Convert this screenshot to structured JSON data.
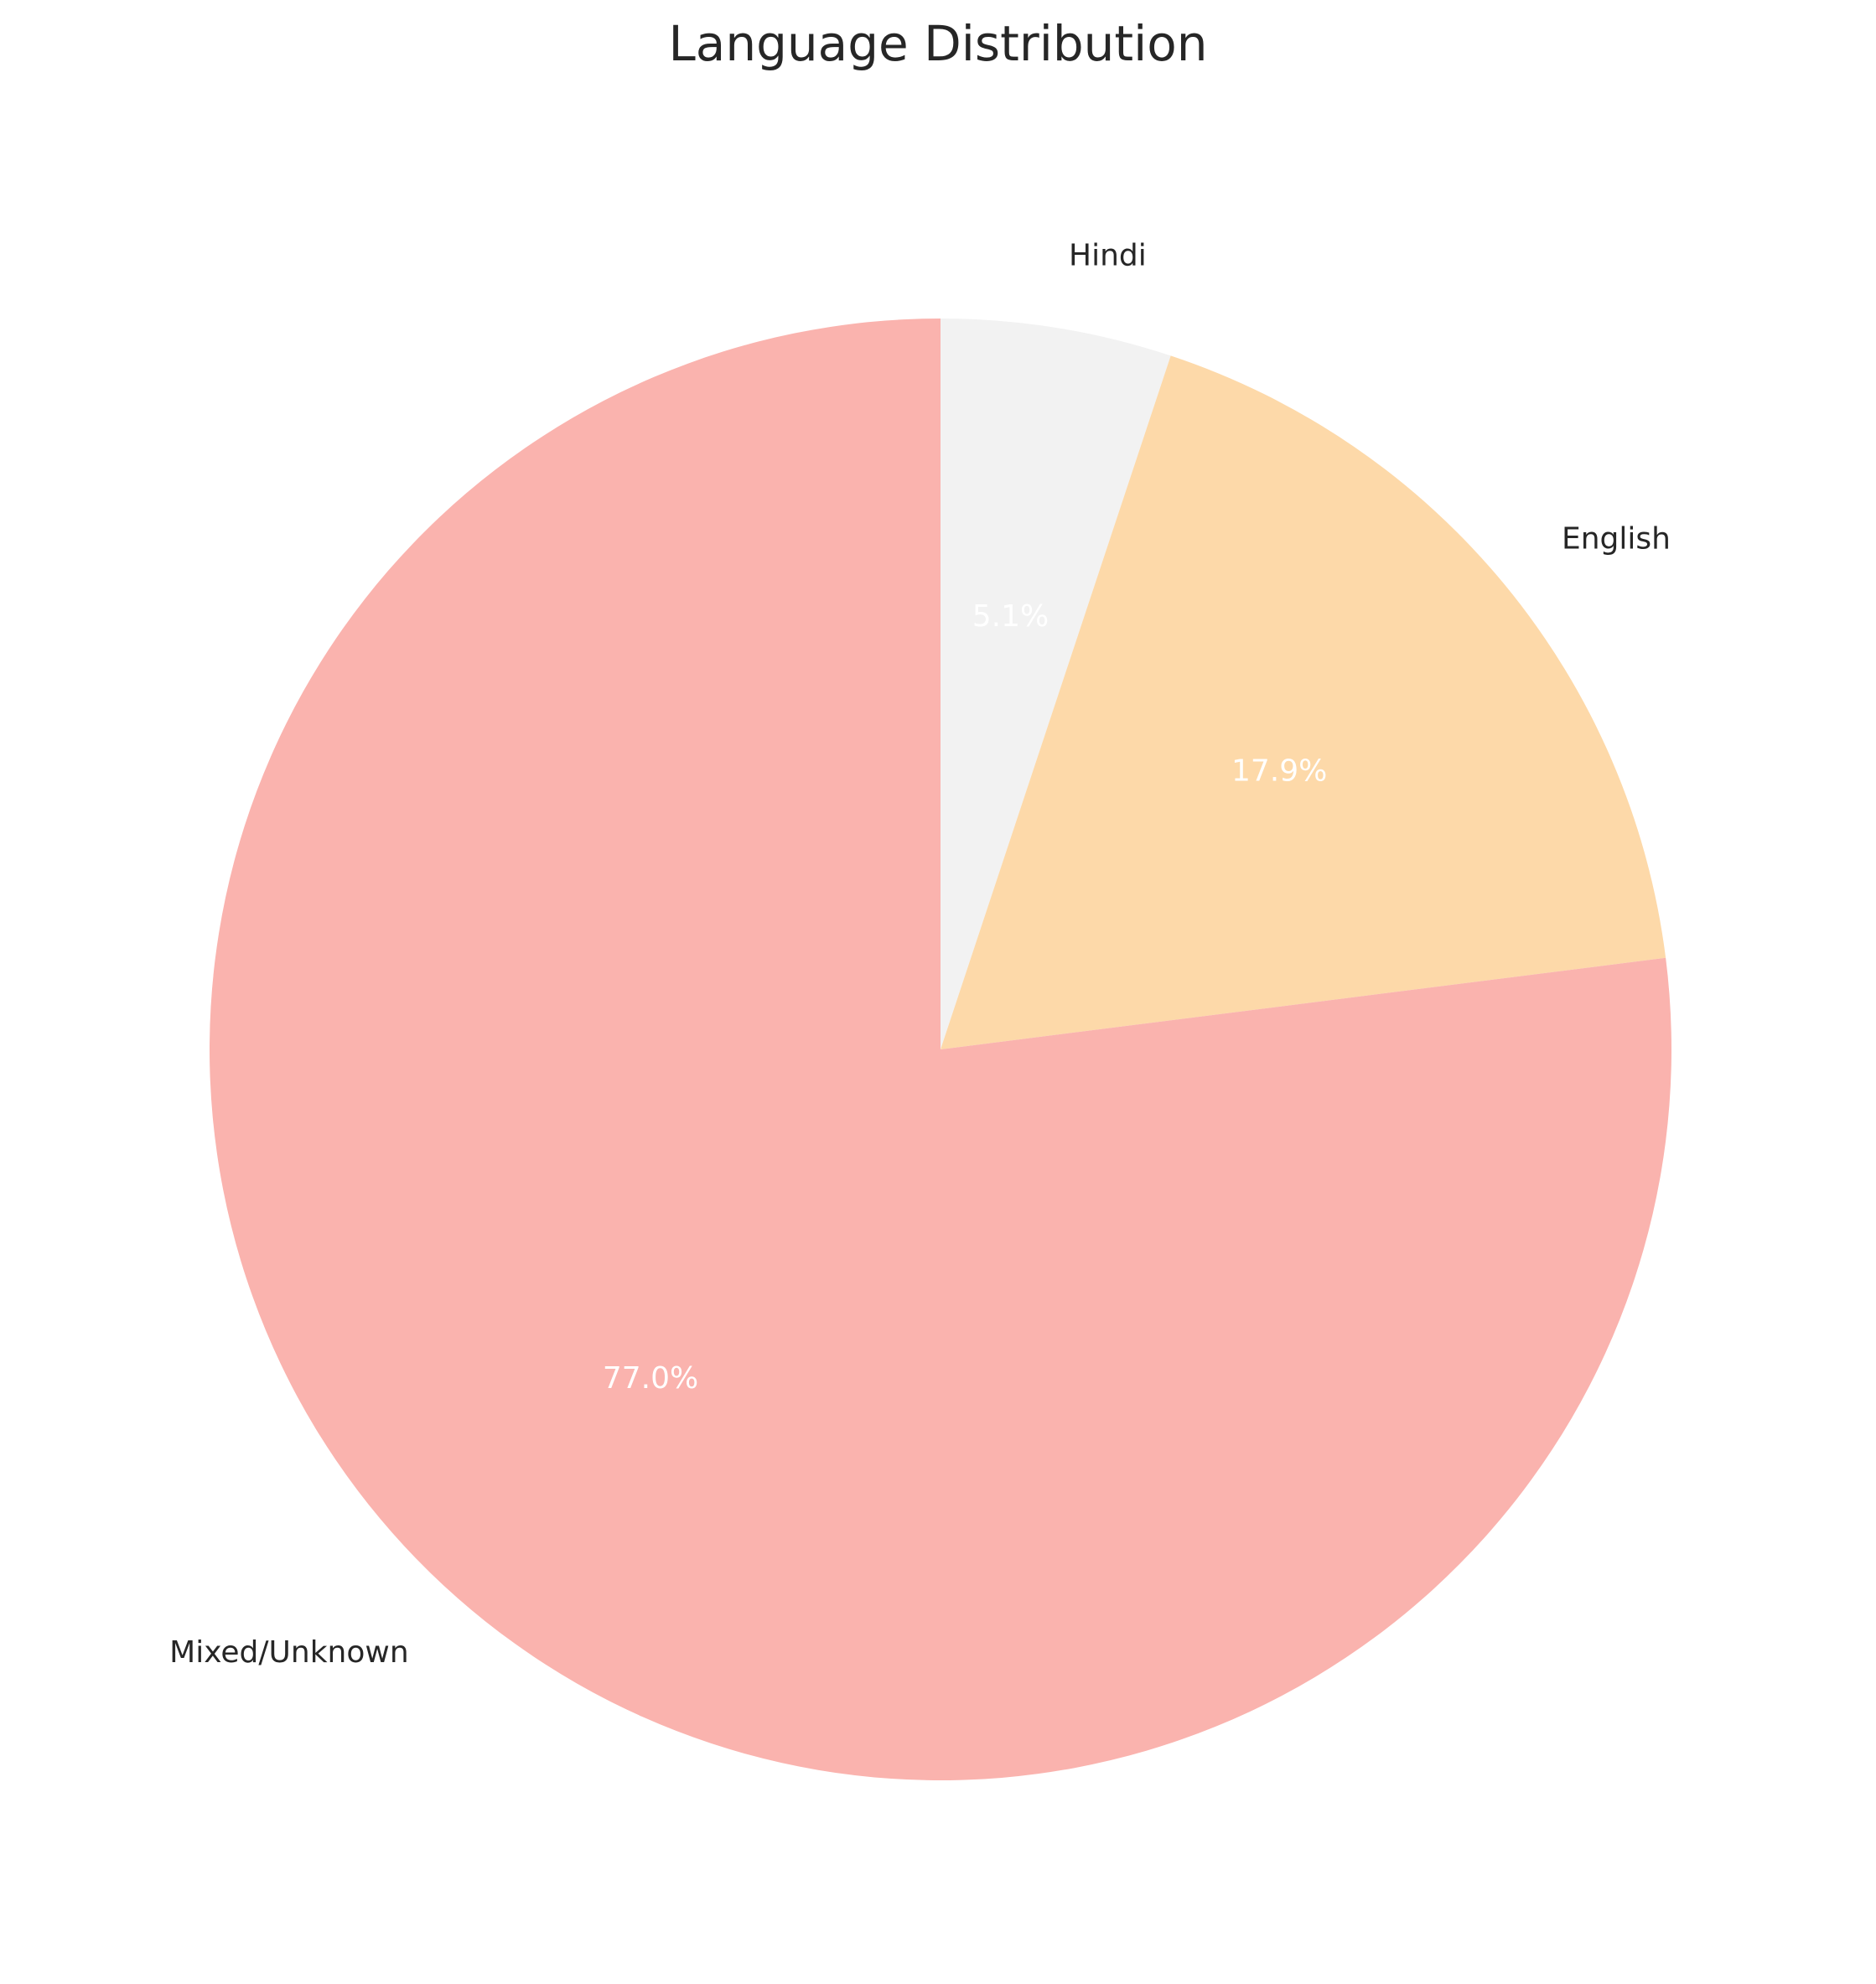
{
  "chart_data": {
    "type": "pie",
    "title": "Language Distribution",
    "start_angle": 90,
    "direction": "clockwise",
    "grid": false,
    "legend": "none",
    "slices": [
      {
        "label": "Hindi",
        "value": 5.1,
        "pct_label": "5.1%",
        "color": "#f2f2f2"
      },
      {
        "label": "English",
        "value": 17.9,
        "pct_label": "17.9%",
        "color": "#fdd9a9"
      },
      {
        "label": "Mixed/Unknown",
        "value": 77.0,
        "pct_label": "77.0%",
        "color": "#fab3ae"
      }
    ]
  }
}
